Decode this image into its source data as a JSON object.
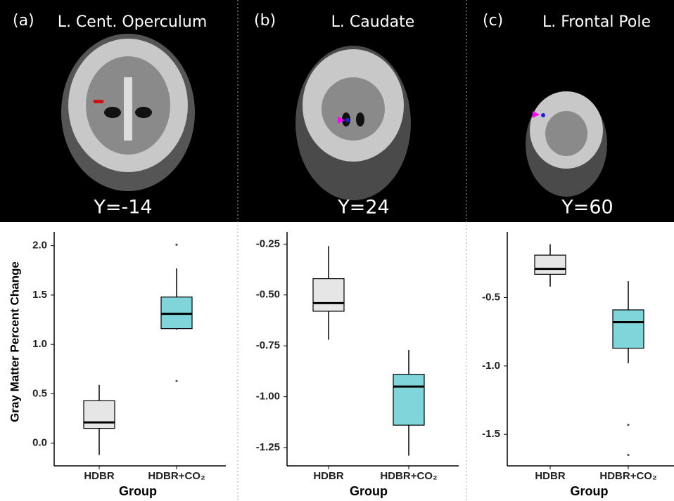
{
  "chart_data": [
    {
      "type": "box",
      "panel_label": "(a)",
      "title": "L. Cent. Operculum",
      "slice_label": "Y=-14",
      "y_label": "Gray Matter Percent Change",
      "x_label": "Group",
      "categories": [
        "HDBR",
        "HDBR+CO₂"
      ],
      "colors": [
        "#e6e6e6",
        "#7fd5d9"
      ],
      "boxes": [
        {
          "min": -0.12,
          "q1": 0.15,
          "median": 0.21,
          "q3": 0.43,
          "max": 0.59,
          "outliers": []
        },
        {
          "min": 1.15,
          "q1": 1.16,
          "median": 1.31,
          "q3": 1.48,
          "max": 1.77,
          "outliers": [
            2.01,
            0.63
          ]
        }
      ],
      "ylim": [
        -0.23,
        2.14
      ],
      "yticks": [
        {
          "value": 0,
          "label": "0.0"
        },
        0.5,
        {
          "value": 1,
          "label": "1.0"
        },
        1.5,
        {
          "value": 2,
          "label": "2.0"
        }
      ]
    },
    {
      "type": "box",
      "panel_label": "(b)",
      "title": "L. Caudate",
      "slice_label": "Y=24",
      "x_label": "Group",
      "categories": [
        "HDBR",
        "HDBR+CO₂"
      ],
      "colors": [
        "#e6e6e6",
        "#7fd5d9"
      ],
      "boxes": [
        {
          "min": -0.72,
          "q1": -0.58,
          "median": -0.54,
          "q3": -0.42,
          "max": -0.26,
          "outliers": []
        },
        {
          "min": -1.29,
          "q1": -1.14,
          "median": -0.95,
          "q3": -0.89,
          "max": -0.77,
          "outliers": []
        }
      ],
      "ylim": [
        -1.34,
        -0.19
      ],
      "yticks": [
        -0.25,
        {
          "value": -0.5,
          "label": "-0.50"
        },
        -0.75,
        {
          "value": -1,
          "label": "-1.00"
        },
        -1.25
      ]
    },
    {
      "type": "box",
      "panel_label": "(c)",
      "title": "L. Frontal Pole",
      "slice_label": "Y=60",
      "x_label": "Group",
      "categories": [
        "HDBR",
        "HDBR+CO₂"
      ],
      "colors": [
        "#e6e6e6",
        "#7fd5d9"
      ],
      "boxes": [
        {
          "min": -0.42,
          "q1": -0.33,
          "median": -0.29,
          "q3": -0.19,
          "max": -0.11,
          "outliers": []
        },
        {
          "min": -0.98,
          "q1": -0.87,
          "median": -0.68,
          "q3": -0.59,
          "max": -0.38,
          "outliers": [
            -1.43,
            -1.65
          ]
        }
      ],
      "ylim": [
        -1.73,
        -0.02
      ],
      "yticks": [
        -0.5,
        {
          "value": -1,
          "label": "-1.0"
        },
        -1.5
      ]
    }
  ]
}
